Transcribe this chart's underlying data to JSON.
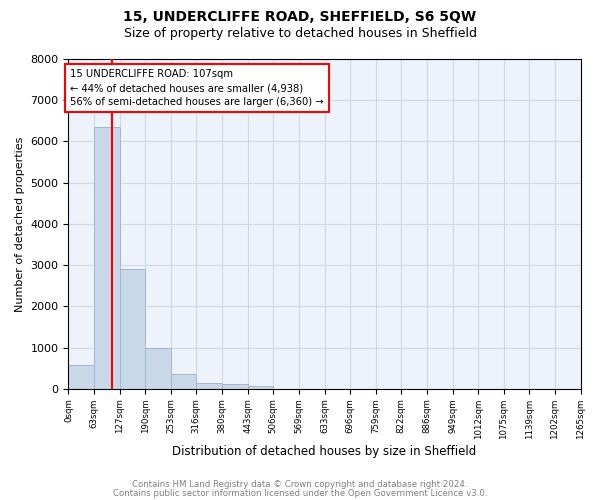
{
  "title1": "15, UNDERCLIFFE ROAD, SHEFFIELD, S6 5QW",
  "title2": "Size of property relative to detached houses in Sheffield",
  "xlabel": "Distribution of detached houses by size in Sheffield",
  "ylabel": "Number of detached properties",
  "bin_edges": [
    0,
    63,
    127,
    190,
    253,
    316,
    380,
    443,
    506,
    569,
    633,
    696,
    759,
    822,
    886,
    949,
    1012,
    1075,
    1139,
    1202,
    1265
  ],
  "bin_values": [
    570,
    6350,
    2900,
    980,
    370,
    150,
    110,
    70,
    0,
    0,
    0,
    0,
    0,
    0,
    0,
    0,
    0,
    0,
    0,
    0
  ],
  "property_size": 107,
  "bar_color": "#c8d8e8",
  "bar_edge_color": "#a0b8d0",
  "vline_color": "red",
  "annotation_line1": "15 UNDERCLIFFE ROAD: 107sqm",
  "annotation_line2": "← 44% of detached houses are smaller (4,938)",
  "annotation_line3": "56% of semi-detached houses are larger (6,360) →",
  "annotation_box_color": "white",
  "annotation_box_edge": "red",
  "ylim": [
    0,
    8000
  ],
  "yticks": [
    0,
    1000,
    2000,
    3000,
    4000,
    5000,
    6000,
    7000,
    8000
  ],
  "footer1": "Contains HM Land Registry data © Crown copyright and database right 2024.",
  "footer2": "Contains public sector information licensed under the Open Government Licence v3.0.",
  "grid_color": "#d0d8e8",
  "background_color": "#eef2fa"
}
